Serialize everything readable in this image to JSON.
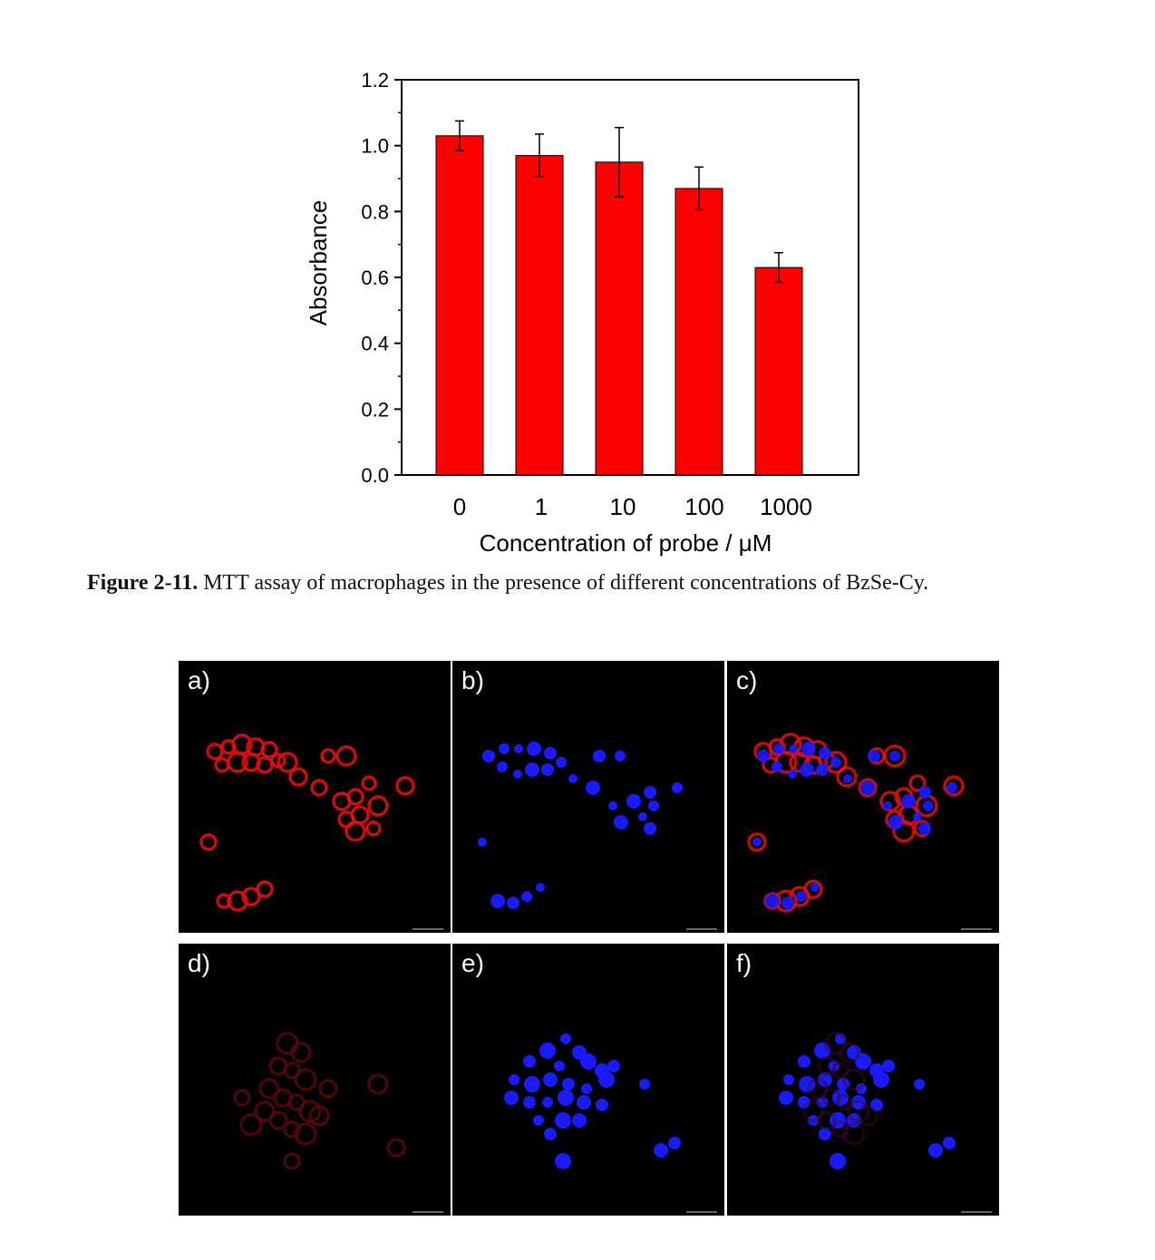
{
  "chart_data": {
    "type": "bar",
    "categories": [
      "0",
      "1",
      "10",
      "100",
      "1000"
    ],
    "values": [
      1.03,
      0.97,
      0.95,
      0.87,
      0.63
    ],
    "errors": [
      0.045,
      0.065,
      0.105,
      0.065,
      0.045
    ],
    "ylabel": "Absorbance",
    "xlabel": "Concentration of probe / μM",
    "ylim": [
      0,
      1.2
    ],
    "yticks": [
      "0.0",
      "0.2",
      "0.4",
      "0.6",
      "0.8",
      "1.0",
      "1.2"
    ],
    "bar_color": "#ff0000",
    "grid": false
  },
  "caption": {
    "label": "Figure 2-11.",
    "text": " MTT assay of macrophages in the presence of different concentrations of BzSe-Cy."
  },
  "panels": [
    {
      "label": "a)",
      "channel": "red"
    },
    {
      "label": "b)",
      "channel": "blue"
    },
    {
      "label": "c)",
      "channel": "merge"
    },
    {
      "label": "d)",
      "channel": "dim-red"
    },
    {
      "label": "e)",
      "channel": "blue"
    },
    {
      "label": "f)",
      "channel": "merge"
    }
  ],
  "colors": {
    "red_stain": "#e01010",
    "blue_stain": "#1a1aff",
    "panel_bg": "#000000"
  }
}
